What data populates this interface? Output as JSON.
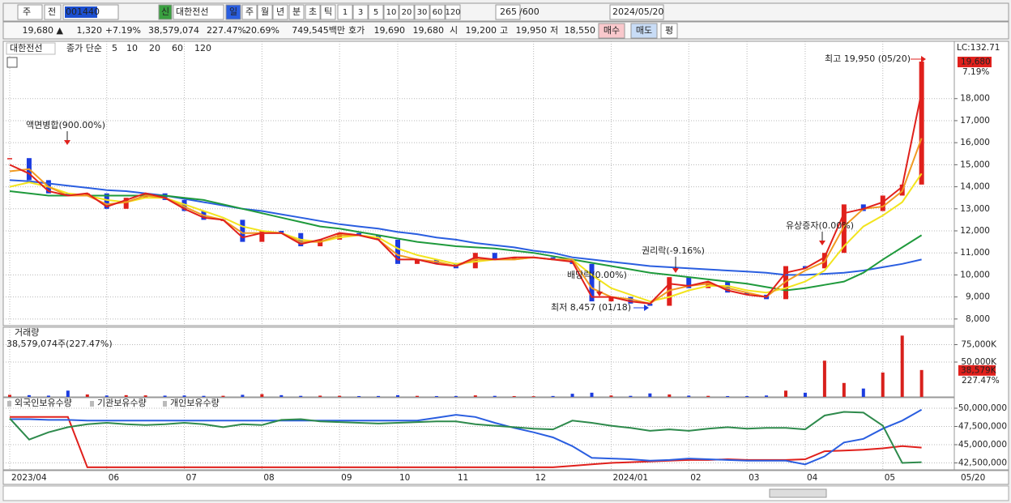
{
  "toolbar": {
    "market": "주",
    "prev": "전",
    "code": "001440",
    "new": "신",
    "name": "대한전선",
    "periods": [
      "일",
      "주",
      "월",
      "년",
      "분",
      "초",
      "틱"
    ],
    "intervals": [
      "1",
      "3",
      "5",
      "10",
      "20",
      "30",
      "60",
      "120"
    ],
    "count": "265",
    "max": "/600",
    "date": "2024/05/20"
  },
  "quote_bar": {
    "price": "19,680 ▲",
    "change": "1,320",
    "rate": "+7.19%",
    "volume": "38,579,074",
    "vol_rate": "227.47%",
    "turnover": "20.69%",
    "amount": "749,545백만",
    "ask_label": "호가",
    "ask": "19,690",
    "bid": "19,680",
    "open_label": "시",
    "open": "19,200",
    "high_label": "고",
    "high": "19,950",
    "low_label": "저",
    "low": "18,550",
    "buy": "매수",
    "sell": "매도",
    "avg": "평"
  },
  "chart_data": [
    {
      "type": "candlestick",
      "title": "대한전선",
      "legend_prefix": "종가 단순",
      "lc_label": "LC:132.71",
      "last_label": "19,680",
      "change_label": "7.19%",
      "price": {
        "up_color": "#e0201c",
        "down_color": "#1c3ce0",
        "values": [
          15300,
          14300,
          13700,
          13600,
          13700,
          13000,
          13500,
          13700,
          13400,
          12900,
          12500,
          12500,
          11500,
          12000,
          11900,
          11300,
          11600,
          11900,
          11800,
          11600,
          10500,
          10700,
          10500,
          10300,
          11000,
          10700,
          10800,
          10800,
          10700,
          10500,
          8800,
          9000,
          8700,
          8600,
          9900,
          9400,
          9700,
          9200,
          9100,
          8900,
          10400,
          10300,
          11000,
          13200,
          12900,
          13600,
          14100,
          19680
        ]
      },
      "series": [
        {
          "name": "5",
          "color": "#e0201c",
          "values": [
            15000,
            14600,
            13800,
            13600,
            13700,
            13100,
            13400,
            13700,
            13500,
            13000,
            12600,
            12500,
            11700,
            11900,
            11900,
            11400,
            11600,
            11900,
            11800,
            11600,
            10700,
            10700,
            10500,
            10400,
            10800,
            10700,
            10800,
            10800,
            10700,
            10600,
            9000,
            9000,
            8800,
            8700,
            9600,
            9500,
            9700,
            9300,
            9100,
            9000,
            10100,
            10300,
            10800,
            12800,
            13000,
            13300,
            14000,
            18300
          ]
        },
        {
          "name": "10",
          "color": "#f09a22",
          "values": [
            14700,
            14800,
            14000,
            13600,
            13600,
            13200,
            13300,
            13600,
            13500,
            13100,
            12700,
            12500,
            11900,
            11900,
            11900,
            11500,
            11500,
            11800,
            11800,
            11600,
            10900,
            10700,
            10600,
            10400,
            10700,
            10700,
            10700,
            10800,
            10700,
            10700,
            9400,
            9000,
            8900,
            8700,
            9300,
            9500,
            9600,
            9400,
            9200,
            9000,
            9700,
            10200,
            10600,
            12200,
            13000,
            13100,
            13800,
            16200
          ]
        },
        {
          "name": "20",
          "color": "#f2e41e",
          "values": [
            14000,
            14200,
            14000,
            13700,
            13600,
            13400,
            13300,
            13500,
            13500,
            13200,
            12900,
            12600,
            12200,
            12000,
            11900,
            11600,
            11500,
            11700,
            11800,
            11700,
            11200,
            10900,
            10700,
            10500,
            10600,
            10700,
            10700,
            10800,
            10700,
            10700,
            10000,
            9400,
            9100,
            8800,
            9000,
            9300,
            9500,
            9500,
            9300,
            9200,
            9400,
            9700,
            10200,
            11300,
            12200,
            12700,
            13300,
            14600
          ]
        },
        {
          "name": "60",
          "color": "#1f9a3c",
          "values": [
            13800,
            13700,
            13600,
            13600,
            13600,
            13600,
            13600,
            13600,
            13600,
            13500,
            13400,
            13200,
            13000,
            12800,
            12600,
            12400,
            12200,
            12100,
            11950,
            11800,
            11650,
            11500,
            11400,
            11300,
            11250,
            11200,
            11100,
            11000,
            10850,
            10700,
            10550,
            10400,
            10250,
            10100,
            10000,
            9900,
            9800,
            9700,
            9600,
            9450,
            9300,
            9400,
            9550,
            9700,
            10100,
            10700,
            11250,
            11800
          ]
        },
        {
          "name": "120",
          "color": "#2a5ee0",
          "values": [
            14300,
            14250,
            14150,
            14050,
            13950,
            13850,
            13800,
            13700,
            13600,
            13450,
            13300,
            13150,
            13000,
            12900,
            12750,
            12600,
            12450,
            12300,
            12200,
            12100,
            11950,
            11850,
            11700,
            11600,
            11450,
            11350,
            11250,
            11100,
            11000,
            10800,
            10700,
            10600,
            10500,
            10400,
            10350,
            10300,
            10250,
            10200,
            10150,
            10100,
            10000,
            10000,
            10050,
            10100,
            10200,
            10350,
            10500,
            10700
          ]
        }
      ],
      "ylim": [
        7700,
        20600
      ],
      "yticks": [
        {
          "value": 8000,
          "label": "8,000"
        },
        {
          "value": 9000,
          "label": "9,000"
        },
        {
          "value": 10000,
          "label": "10,000"
        },
        {
          "value": 11000,
          "label": "11,000"
        },
        {
          "value": 12000,
          "label": "12,000"
        },
        {
          "value": 13000,
          "label": "13,000"
        },
        {
          "value": 14000,
          "label": "14,000"
        },
        {
          "value": 15000,
          "label": "15,000"
        },
        {
          "value": 16000,
          "label": "16,000"
        },
        {
          "value": 17000,
          "label": "17,000"
        },
        {
          "value": 18000,
          "label": "18,000"
        }
      ],
      "grid": true,
      "annotations": [
        "액면병합(900.00%)",
        "권리락(-9.16%)",
        "배당락(0.00%)",
        "최저 8,457 (01/18)",
        "유상증자(0.00%)",
        "최고 19,950 (05/20)"
      ]
    },
    {
      "type": "bar",
      "title": "거래량",
      "subtitle": "38,579,074주(227.47%)",
      "last_label": "38,579K",
      "last_pct": "227.47%",
      "up_color": "#d8201c",
      "down_color": "#1c3ce0",
      "values": [
        3000,
        2500,
        1800,
        9000,
        3500,
        2000,
        2500,
        2200,
        1800,
        2000,
        1500,
        1600,
        3000,
        4000,
        2500,
        1500,
        1800,
        1600,
        1200,
        1300,
        2500,
        1500,
        1200,
        1300,
        2200,
        1500,
        1200,
        1000,
        1300,
        4500,
        6000,
        2000,
        1500,
        5000,
        3500,
        1800,
        1500,
        1200,
        1200,
        2000,
        9000,
        6000,
        52000,
        20000,
        12000,
        35000,
        88000,
        38579
      ],
      "ylim": [
        0,
        100000
      ],
      "yticks": [
        {
          "value": 50000,
          "label": "50,000K"
        },
        {
          "value": 75000,
          "label": "75,000K"
        }
      ],
      "grid": true
    },
    {
      "type": "line",
      "categories": [
        "2023/04",
        null,
        null,
        null,
        null,
        "06",
        null,
        null,
        null,
        "07",
        null,
        null,
        null,
        "08",
        null,
        null,
        null,
        "09",
        null,
        null,
        "10",
        null,
        null,
        "11",
        null,
        null,
        null,
        "12",
        null,
        null,
        null,
        "2024/01",
        null,
        null,
        null,
        "02",
        null,
        null,
        "03",
        null,
        null,
        "04",
        null,
        null,
        null,
        "05",
        null,
        null
      ],
      "last_date_label": "05/20",
      "series": [
        {
          "name": "외국인보유수량",
          "color": "#e0201c",
          "values": [
            48800000,
            48800000,
            48800000,
            48800000,
            41900000,
            41900000,
            41900000,
            41900000,
            41900000,
            41900000,
            41900000,
            41900000,
            41900000,
            41900000,
            41900000,
            41900000,
            41900000,
            41900000,
            41900000,
            41900000,
            41900000,
            41900000,
            41900000,
            41900000,
            41900000,
            41900000,
            41900000,
            41900000,
            41900000,
            42100000,
            42300000,
            42500000,
            42600000,
            42700000,
            42800000,
            42900000,
            42900000,
            43000000,
            42900000,
            42900000,
            42900000,
            43000000,
            44100000,
            44200000,
            44300000,
            44500000,
            44800000,
            44600000
          ]
        },
        {
          "name": "기관보유수량",
          "color": "#2a5ee0",
          "values": [
            48500000,
            48500000,
            48400000,
            48400000,
            48300000,
            48300000,
            48300000,
            48300000,
            48300000,
            48300000,
            48300000,
            48300000,
            48300000,
            48300000,
            48300000,
            48300000,
            48300000,
            48300000,
            48300000,
            48300000,
            48300000,
            48300000,
            48700000,
            49100000,
            48800000,
            48000000,
            47300000,
            46700000,
            46000000,
            44800000,
            43200000,
            43100000,
            43000000,
            42800000,
            42900000,
            43100000,
            43000000,
            42900000,
            42800000,
            42800000,
            42800000,
            42300000,
            43400000,
            45300000,
            45800000,
            47200000,
            48300000,
            49800000
          ]
        },
        {
          "name": "개인보유수량",
          "color": "#2e8a4c",
          "values": [
            48600000,
            45700000,
            46700000,
            47400000,
            47800000,
            48000000,
            47800000,
            47700000,
            47800000,
            48000000,
            47800000,
            47400000,
            47800000,
            47700000,
            48400000,
            48500000,
            48200000,
            48100000,
            48000000,
            47900000,
            48000000,
            48100000,
            48200000,
            48200000,
            47800000,
            47600000,
            47400000,
            47200000,
            47100000,
            48300000,
            48000000,
            47600000,
            47300000,
            46900000,
            47100000,
            46900000,
            47200000,
            47400000,
            47200000,
            47300000,
            47300000,
            47100000,
            49000000,
            49500000,
            49400000,
            47600000,
            42500000,
            42600000
          ]
        }
      ],
      "ylim": [
        41560000,
        51440000
      ],
      "yticks": [
        {
          "value": 42500000,
          "label": "42,500,000"
        },
        {
          "value": 45000000,
          "label": "45,000,000"
        },
        {
          "value": 47500000,
          "label": "47,500,000"
        },
        {
          "value": 50000000,
          "label": "50,000,000"
        }
      ],
      "grid": true
    }
  ]
}
